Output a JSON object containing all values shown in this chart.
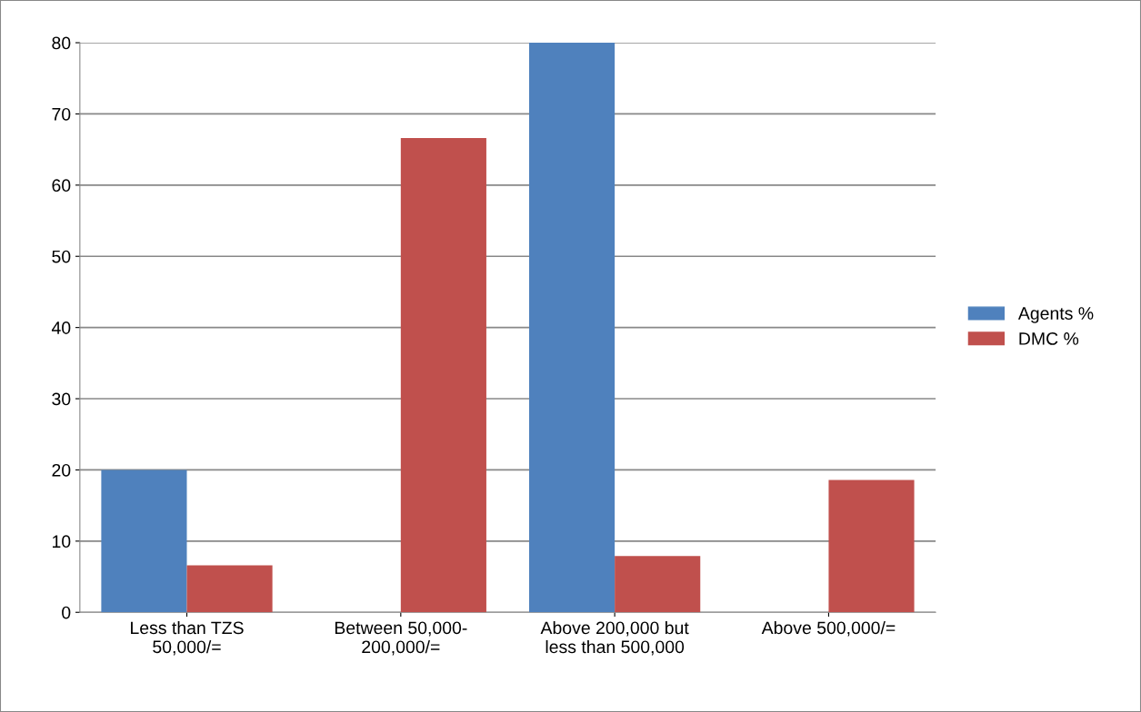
{
  "chart_data": {
    "type": "bar",
    "categories": [
      "Less than TZS\n50,000/=",
      "Between 50,000-\n200,000/=",
      "Above 200,000 but\nless than 500,000",
      "Above 500,000/="
    ],
    "series": [
      {
        "name": "Agents %",
        "color": "#4f81bd",
        "values": [
          20,
          0,
          80,
          0
        ]
      },
      {
        "name": "DMC %",
        "color": "#c0504d",
        "values": [
          6.6,
          66.6,
          7.9,
          18.6
        ]
      }
    ],
    "ylim": [
      0,
      80
    ],
    "yticks": [
      0,
      10,
      20,
      30,
      40,
      50,
      60,
      70,
      80
    ],
    "grid": "y",
    "legend": "right"
  }
}
